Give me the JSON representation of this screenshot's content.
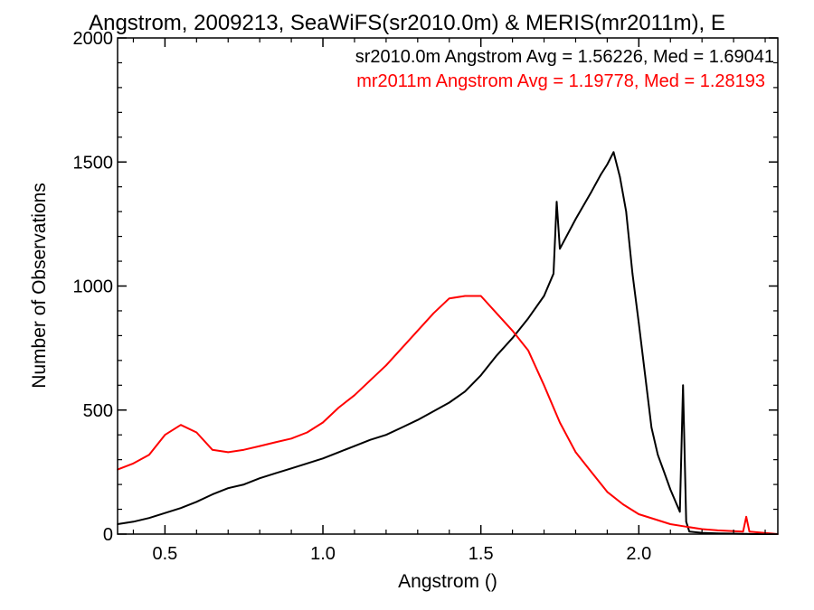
{
  "chart_data": {
    "type": "line",
    "title": "Angstrom, 2009213, SeaWiFS(sr2010.0m) & MERIS(mr2011m), E",
    "xlabel": "Angstrom ()",
    "ylabel": "Number of Observations",
    "xlim": [
      0.35,
      2.44
    ],
    "ylim": [
      0,
      2000
    ],
    "x_ticks": [
      "0.5",
      "1.0",
      "1.5",
      "2.0"
    ],
    "y_ticks": [
      "0",
      "500",
      "1000",
      "1500",
      "2000"
    ],
    "grid": false,
    "annotations": [
      {
        "text": "sr2010.0m Angstrom Avg = 1.56226, Med = 1.69041",
        "color": "#000000"
      },
      {
        "text": "mr2011m Angstrom Avg = 1.19778, Med = 1.28193",
        "color": "#ff0000"
      }
    ],
    "series": [
      {
        "name": "sr2010.0m",
        "color": "#000000",
        "x": [
          0.35,
          0.4,
          0.45,
          0.5,
          0.55,
          0.6,
          0.65,
          0.7,
          0.75,
          0.8,
          0.85,
          0.9,
          0.95,
          1.0,
          1.05,
          1.1,
          1.15,
          1.2,
          1.25,
          1.3,
          1.35,
          1.4,
          1.45,
          1.5,
          1.55,
          1.6,
          1.65,
          1.7,
          1.73,
          1.74,
          1.75,
          1.8,
          1.85,
          1.88,
          1.9,
          1.92,
          1.94,
          1.96,
          1.98,
          2.0,
          2.02,
          2.04,
          2.06,
          2.08,
          2.1,
          2.12,
          2.13,
          2.14,
          2.15,
          2.16,
          2.2,
          2.25,
          2.3,
          2.33,
          2.34,
          2.36,
          2.44
        ],
        "values": [
          40,
          50,
          65,
          85,
          105,
          130,
          160,
          185,
          200,
          225,
          245,
          265,
          285,
          305,
          330,
          355,
          380,
          400,
          430,
          460,
          495,
          530,
          575,
          640,
          720,
          790,
          870,
          960,
          1050,
          1340,
          1150,
          1270,
          1380,
          1450,
          1490,
          1540,
          1440,
          1300,
          1050,
          850,
          640,
          430,
          320,
          250,
          180,
          120,
          90,
          600,
          50,
          10,
          5,
          3,
          2,
          1,
          1,
          0,
          0
        ]
      },
      {
        "name": "mr2011m",
        "color": "#ff0000",
        "x": [
          0.35,
          0.4,
          0.45,
          0.5,
          0.55,
          0.6,
          0.65,
          0.7,
          0.75,
          0.8,
          0.85,
          0.9,
          0.95,
          1.0,
          1.05,
          1.1,
          1.15,
          1.2,
          1.25,
          1.3,
          1.35,
          1.4,
          1.45,
          1.5,
          1.55,
          1.6,
          1.65,
          1.7,
          1.75,
          1.8,
          1.85,
          1.9,
          1.95,
          2.0,
          2.05,
          2.1,
          2.15,
          2.2,
          2.25,
          2.3,
          2.33,
          2.34,
          2.35,
          2.44
        ],
        "values": [
          260,
          285,
          320,
          400,
          440,
          410,
          340,
          330,
          340,
          355,
          370,
          385,
          410,
          450,
          510,
          560,
          620,
          680,
          750,
          820,
          890,
          950,
          960,
          960,
          890,
          820,
          740,
          600,
          450,
          330,
          250,
          170,
          120,
          80,
          60,
          40,
          30,
          20,
          15,
          12,
          10,
          70,
          10,
          0
        ]
      }
    ]
  }
}
